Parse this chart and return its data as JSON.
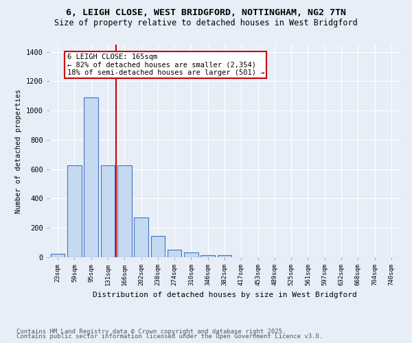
{
  "title_line1": "6, LEIGH CLOSE, WEST BRIDGFORD, NOTTINGHAM, NG2 7TN",
  "title_line2": "Size of property relative to detached houses in West Bridgford",
  "xlabel": "Distribution of detached houses by size in West Bridgford",
  "ylabel": "Number of detached properties",
  "categories": [
    "23sqm",
    "59sqm",
    "95sqm",
    "131sqm",
    "166sqm",
    "202sqm",
    "238sqm",
    "274sqm",
    "310sqm",
    "346sqm",
    "382sqm",
    "417sqm",
    "453sqm",
    "489sqm",
    "525sqm",
    "561sqm",
    "597sqm",
    "632sqm",
    "668sqm",
    "704sqm",
    "740sqm"
  ],
  "values": [
    25,
    625,
    1090,
    625,
    625,
    270,
    145,
    50,
    35,
    15,
    12,
    0,
    0,
    0,
    0,
    0,
    0,
    0,
    0,
    0,
    0
  ],
  "bar_color": "#c5d9f1",
  "bar_edge_color": "#4472c4",
  "vline_color": "#cc0000",
  "vline_x_index": 4,
  "annotation_text": "6 LEIGH CLOSE: 165sqm\n← 82% of detached houses are smaller (2,354)\n18% of semi-detached houses are larger (501) →",
  "annotation_box_color": "#cc0000",
  "ylim": [
    0,
    1450
  ],
  "yticks": [
    0,
    200,
    400,
    600,
    800,
    1000,
    1200,
    1400
  ],
  "bg_color": "#e8eef8",
  "plot_bg_color": "#e8eef8",
  "footer_line1": "Contains HM Land Registry data © Crown copyright and database right 2025.",
  "footer_line2": "Contains public sector information licensed under the Open Government Licence v3.0.",
  "title_fontsize": 9.5,
  "subtitle_fontsize": 8.5,
  "annotation_fontsize": 7.5,
  "footer_fontsize": 6.5,
  "ylabel_fontsize": 7.5,
  "xlabel_fontsize": 8
}
